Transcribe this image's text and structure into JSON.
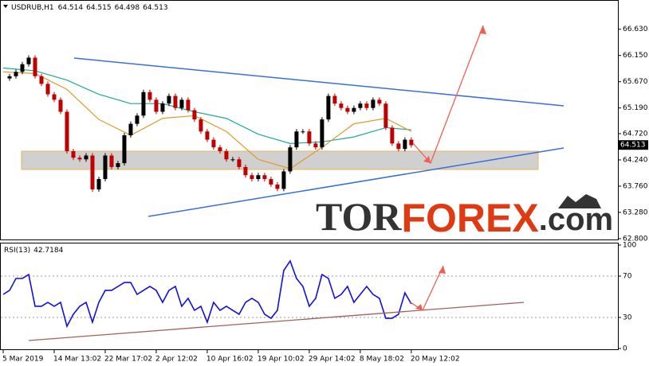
{
  "chart_data": [
    {
      "type": "candlestick",
      "title": "USDRUB,H1",
      "quote": [
        64.514,
        64.515,
        64.498,
        64.513
      ],
      "close": [
        65.73,
        65.77,
        65.85,
        65.99,
        66.11,
        65.77,
        65.63,
        65.44,
        65.34,
        65.12,
        64.4,
        64.28,
        64.25,
        64.32,
        63.7,
        63.89,
        64.32,
        64.11,
        64.18,
        64.69,
        64.9,
        65.05,
        65.48,
        65.34,
        65.12,
        65.27,
        65.41,
        65.19,
        65.34,
        65.15,
        64.98,
        64.76,
        64.61,
        64.47,
        64.4,
        64.25,
        64.25,
        64.11,
        63.96,
        63.89,
        63.96,
        63.89,
        63.79,
        63.71,
        64.03,
        64.47,
        64.76,
        64.76,
        64.54,
        64.47,
        64.98,
        65.41,
        65.27,
        65.19,
        65.12,
        65.19,
        65.27,
        65.19,
        65.34,
        65.27,
        64.83,
        64.54,
        64.44,
        64.61,
        64.51
      ],
      "up_color": "#000000",
      "down_color": "#c00000",
      "series": [
        {
          "color": "#1fa89c",
          "x": [
            0,
            5,
            10,
            15,
            20,
            25,
            30,
            35,
            40,
            45,
            50,
            55,
            60,
            64
          ],
          "values": [
            65.92,
            65.87,
            65.7,
            65.44,
            65.27,
            65.27,
            65.12,
            65.0,
            64.71,
            64.54,
            64.57,
            64.66,
            64.83,
            64.79
          ]
        },
        {
          "color": "#e09a2a",
          "x": [
            0,
            5,
            10,
            15,
            20,
            25,
            30,
            35,
            40,
            45,
            50,
            55,
            60,
            64
          ],
          "values": [
            65.85,
            65.82,
            65.53,
            64.98,
            64.69,
            65.0,
            65.05,
            64.76,
            64.25,
            64.08,
            64.47,
            64.9,
            65.0,
            64.76
          ]
        }
      ],
      "last_price": 64.513,
      "xlim": [
        -0.5,
        96.4
      ],
      "ylim": [
        62.77,
        67.15
      ],
      "yticks": [
        {
          "value": 66.63,
          "label": "66.630"
        },
        {
          "value": 66.15,
          "label": "66.150"
        },
        {
          "value": 65.67,
          "label": "65.670"
        },
        {
          "value": 65.19,
          "label": "65.190"
        },
        {
          "value": 64.72,
          "label": "64.720"
        },
        {
          "value": 64.24,
          "label": "64.240"
        },
        {
          "value": 63.76,
          "label": "63.760"
        },
        {
          "value": 63.28,
          "label": "63.280"
        },
        {
          "value": 62.8,
          "label": "62.800"
        }
      ],
      "xticks": [
        {
          "value": 0,
          "label": "5 Mar 2019"
        },
        {
          "value": 8,
          "label": "14 Mar 13:02"
        },
        {
          "value": 16,
          "label": "22 Mar 17:02"
        },
        {
          "value": 24,
          "label": "2 Apr 12:02"
        },
        {
          "value": 32,
          "label": "10 Apr 16:02"
        },
        {
          "value": 40,
          "label": "19 Apr 10:02"
        },
        {
          "value": 48,
          "label": "29 Apr 14:02"
        },
        {
          "value": 56,
          "label": "8 May 18:02"
        },
        {
          "value": 64,
          "label": "20 May 12:02"
        }
      ]
    },
    {
      "type": "line",
      "title": "RSI(13)",
      "latest": 42.7184,
      "color": "#1010e0",
      "values": [
        52.3,
        56.2,
        67.7,
        67.7,
        71.5,
        40.8,
        40.8,
        44.6,
        40.8,
        44.6,
        21.5,
        33.1,
        40.8,
        44.6,
        25.4,
        44.6,
        56.2,
        56.2,
        60.0,
        63.8,
        63.8,
        52.3,
        56.2,
        60.0,
        56.2,
        44.6,
        56.2,
        60.0,
        40.8,
        48.5,
        36.9,
        40.8,
        25.4,
        44.6,
        36.9,
        40.8,
        36.9,
        33.1,
        44.6,
        48.5,
        44.6,
        33.1,
        29.2,
        36.9,
        75.4,
        84.6,
        67.7,
        60.0,
        40.8,
        48.5,
        71.5,
        67.7,
        48.5,
        52.3,
        60.0,
        44.6,
        52.3,
        60.0,
        52.3,
        48.5,
        29.2,
        29.2,
        33.1,
        53.8,
        43.1
      ],
      "xlim": [
        -0.5,
        96.4
      ],
      "ylim": [
        0,
        100
      ],
      "yticks": [
        100,
        70,
        30,
        0
      ],
      "levels": [
        70,
        30
      ]
    }
  ],
  "watermark": {
    "left": "TOR",
    "brand": "FOREX",
    "suffix": ".com"
  }
}
